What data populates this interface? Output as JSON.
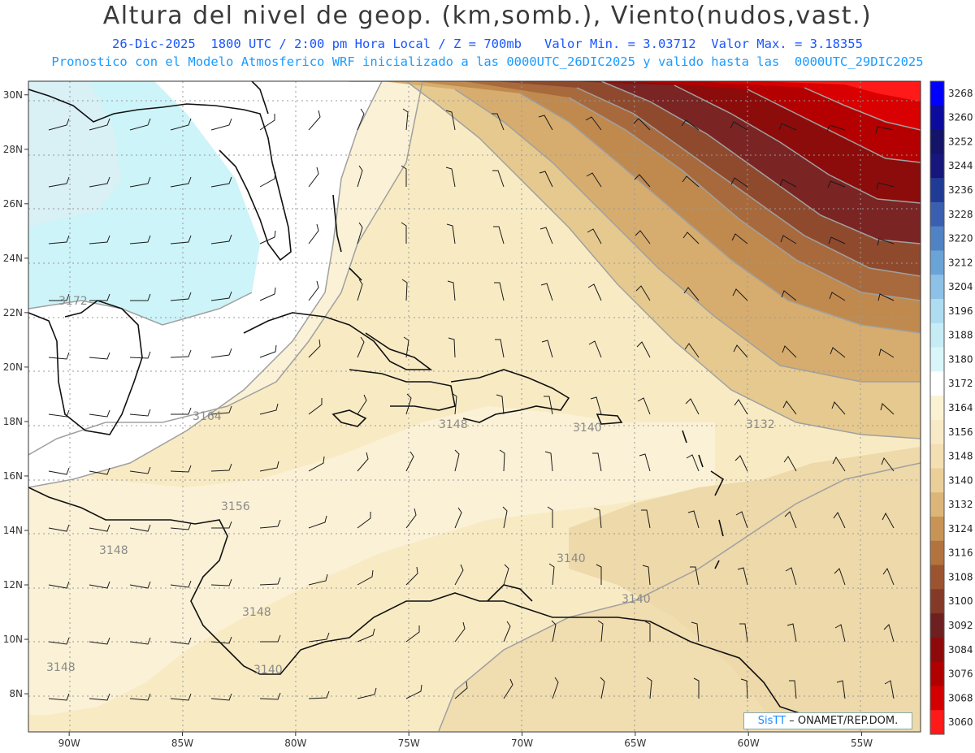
{
  "title": "Altura del nivel de geop. (km,somb.), Viento(nudos,vast.)",
  "subtitle_line1": {
    "date": "26-Dic-2025",
    "time": "1800 UTC / 2:00 pm Hora Local / Z = 700mb",
    "min_label": "Valor Min. = 3.03712",
    "max_label": "Valor Max. = 3.18355"
  },
  "subtitle_line2": "Pronostico con el Modelo Atmosferico WRF inicializado a las 0000UTC_26DIC2025 y valido hasta las  0000UTC_29DIC2025",
  "axes": {
    "lon_labels": [
      "90W",
      "85W",
      "80W",
      "75W",
      "70W",
      "65W",
      "60W",
      "55W"
    ],
    "lat_labels": [
      "30N",
      "28N",
      "26N",
      "24N",
      "22N",
      "20N",
      "18N",
      "16N",
      "14N",
      "12N",
      "10N",
      "8N"
    ],
    "lon_range": [
      -91.8,
      -52.4
    ],
    "lat_range": [
      6.6,
      30.5
    ]
  },
  "colorbar": {
    "levels": [
      3268,
      3260,
      3252,
      3244,
      3236,
      3228,
      3220,
      3212,
      3204,
      3196,
      3188,
      3180,
      3172,
      3164,
      3156,
      3148,
      3140,
      3132,
      3124,
      3116,
      3108,
      3100,
      3092,
      3084,
      3076,
      3068,
      3060
    ],
    "colors": [
      "#0000ff",
      "#0b0b9e",
      "#141468",
      "#16167c",
      "#1f3b96",
      "#3a5fb0",
      "#4f83c4",
      "#6aa3d6",
      "#8dc2e6",
      "#aedcf0",
      "#c6ecf6",
      "#d8f6fa",
      "#ffffff",
      "#fbf2d3",
      "#f8eac6",
      "#f3dfb2",
      "#ebcf98",
      "#dcb679",
      "#c89456",
      "#b2733f",
      "#9c5430",
      "#843a27",
      "#6e1f1f",
      "#8e0a0a",
      "#b00000",
      "#d40000",
      "#ff1a1a"
    ]
  },
  "contour_labels": [
    "3172",
    "3164",
    "3156",
    "3148",
    "3148",
    "3148",
    "3148",
    "3140",
    "3140",
    "3140",
    "3140",
    "3132"
  ],
  "credit": {
    "brand": "SisTT",
    "text": "– ONAMET/REP.DOM."
  }
}
